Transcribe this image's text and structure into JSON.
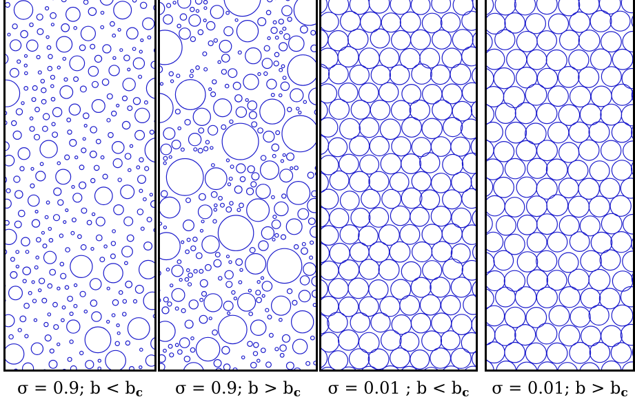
{
  "panels": [
    {
      "sigma_text": "σ = 0.9",
      "cond_prefix": "; b ",
      "relation": "<",
      "sub_base": "b",
      "sub": "c",
      "sigma": 0.9,
      "b_vs_bc": "below",
      "seed": 11
    },
    {
      "sigma_text": "σ = 0.9",
      "cond_prefix": "; b ",
      "relation": ">",
      "sub_base": "b",
      "sub": "c",
      "sigma": 0.9,
      "b_vs_bc": "above",
      "seed": 29
    },
    {
      "sigma_text": "σ = 0.01",
      "cond_prefix": " ; b ",
      "relation": "<",
      "sub_base": "b",
      "sub": "c",
      "sigma": 0.01,
      "b_vs_bc": "below",
      "seed": 47
    },
    {
      "sigma_text": "σ = 0.01",
      "cond_prefix": "; b ",
      "relation": ">",
      "sub_base": "b",
      "sub": "c",
      "sigma": 0.01,
      "b_vs_bc": "above",
      "seed": 83
    }
  ],
  "colors": {
    "circle_stroke": "#1a1acc",
    "frame": "#000000",
    "background": "#ffffff"
  }
}
